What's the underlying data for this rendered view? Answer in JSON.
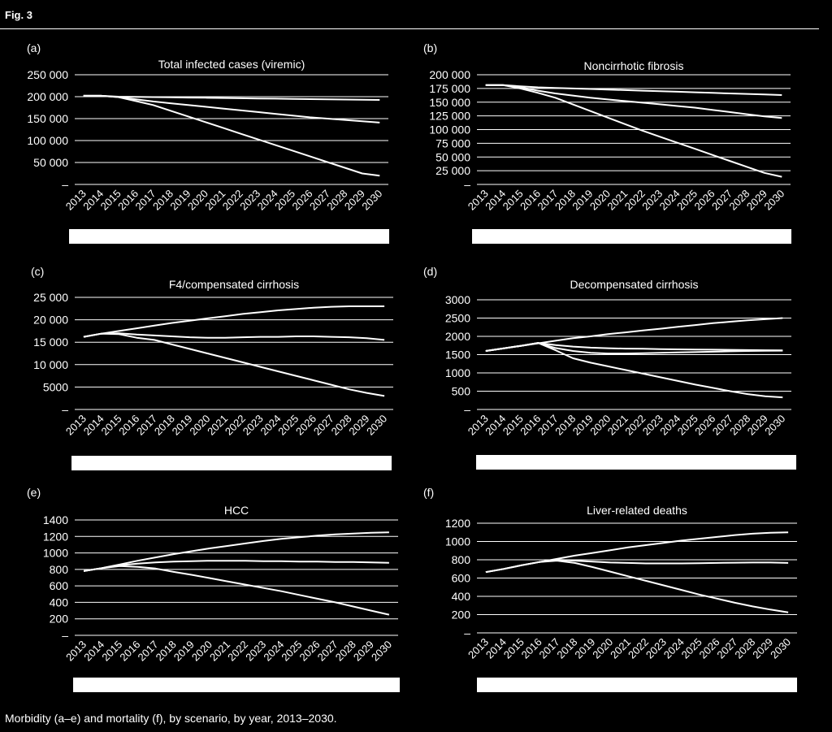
{
  "figure": {
    "label": "Fig. 3",
    "caption": "Morbidity (a–e) and mortality (f), by scenario, by year, 2013–2030."
  },
  "colors": {
    "background": "#000000",
    "foreground": "#ffffff"
  },
  "chart_data": [
    {
      "panel": "(a)",
      "type": "line",
      "title": "Total infected cases (viremic)",
      "x": [
        2013,
        2014,
        2015,
        2016,
        2017,
        2018,
        2019,
        2020,
        2021,
        2022,
        2023,
        2024,
        2025,
        2026,
        2027,
        2028,
        2029,
        2030
      ],
      "ylim": [
        0,
        250000
      ],
      "yticks": [
        "–",
        "50 000",
        "100 000",
        "150 000",
        "200 000",
        "250 000"
      ],
      "grid": true,
      "legend": "bottom (blank)",
      "series": [
        {
          "values": [
            202000,
            202000,
            200000,
            199500,
            199000,
            198500,
            198000,
            197500,
            197000,
            196500,
            196000,
            195500,
            195000,
            194500,
            194000,
            193500,
            193000,
            192500
          ]
        },
        {
          "values": [
            202000,
            202000,
            199000,
            194000,
            189000,
            185000,
            181000,
            177000,
            173000,
            169000,
            165000,
            161000,
            157000,
            153000,
            150000,
            147000,
            144000,
            141000
          ]
        },
        {
          "values": [
            202000,
            202000,
            199000,
            190000,
            181000,
            168000,
            155000,
            142000,
            129000,
            116000,
            103000,
            90000,
            77000,
            64000,
            51000,
            38000,
            25000,
            20000
          ]
        }
      ]
    },
    {
      "panel": "(b)",
      "type": "line",
      "title": "Noncirrhotic fibrosis",
      "x": [
        2013,
        2014,
        2015,
        2016,
        2017,
        2018,
        2019,
        2020,
        2021,
        2022,
        2023,
        2024,
        2025,
        2026,
        2027,
        2028,
        2029,
        2030
      ],
      "ylim": [
        0,
        200000
      ],
      "yticks": [
        "–",
        "25 000",
        "50 000",
        "75 000",
        "100 000",
        "125 000",
        "150 000",
        "175 000",
        "200 000"
      ],
      "grid": true,
      "legend": "bottom (blank)",
      "series": [
        {
          "values": [
            181000,
            181000,
            179000,
            177000,
            176000,
            175000,
            174000,
            173000,
            172000,
            171000,
            170000,
            169000,
            168000,
            167000,
            166000,
            165000,
            164000,
            163000
          ]
        },
        {
          "values": [
            181000,
            181000,
            177000,
            171000,
            166000,
            162000,
            158000,
            155000,
            152000,
            149000,
            146000,
            143000,
            140000,
            136000,
            132000,
            128000,
            124000,
            121000
          ]
        },
        {
          "values": [
            181000,
            181000,
            175000,
            167000,
            158000,
            146000,
            134000,
            122000,
            110000,
            98000,
            87000,
            76000,
            65000,
            54000,
            43000,
            32000,
            21000,
            14000
          ]
        }
      ]
    },
    {
      "panel": "(c)",
      "type": "line",
      "title": "F4/compensated cirrhosis",
      "x": [
        2013,
        2014,
        2015,
        2016,
        2017,
        2018,
        2019,
        2020,
        2021,
        2022,
        2023,
        2024,
        2025,
        2026,
        2027,
        2028,
        2029,
        2030
      ],
      "ylim": [
        0,
        25000
      ],
      "yticks": [
        "–",
        "5000",
        "10 000",
        "15 000",
        "20 000",
        "25 000"
      ],
      "grid": true,
      "legend": "bottom (blank)",
      "series": [
        {
          "values": [
            16200,
            16900,
            17500,
            18100,
            18700,
            19300,
            19800,
            20300,
            20800,
            21300,
            21700,
            22100,
            22400,
            22700,
            22900,
            23000,
            23000,
            23000
          ]
        },
        {
          "values": [
            16200,
            16900,
            17000,
            16700,
            16500,
            16300,
            16100,
            16000,
            16000,
            16100,
            16200,
            16200,
            16300,
            16300,
            16200,
            16100,
            15900,
            15500
          ]
        },
        {
          "values": [
            16200,
            16900,
            16800,
            16000,
            15500,
            14500,
            13500,
            12500,
            11500,
            10500,
            9500,
            8500,
            7500,
            6500,
            5500,
            4500,
            3700,
            3000
          ]
        }
      ]
    },
    {
      "panel": "(d)",
      "type": "line",
      "title": "Decompensated cirrhosis",
      "x": [
        2013,
        2014,
        2015,
        2016,
        2017,
        2018,
        2019,
        2020,
        2021,
        2022,
        2023,
        2024,
        2025,
        2026,
        2027,
        2028,
        2029,
        2030
      ],
      "ylim": [
        0,
        3000
      ],
      "yticks": [
        "–",
        "500",
        "1000",
        "1500",
        "2000",
        "2500",
        "3000"
      ],
      "grid": true,
      "legend": "bottom (blank)",
      "series": [
        {
          "values": [
            1600,
            1670,
            1740,
            1810,
            1880,
            1950,
            2000,
            2060,
            2110,
            2160,
            2210,
            2260,
            2310,
            2360,
            2400,
            2440,
            2470,
            2500
          ]
        },
        {
          "values": [
            1600,
            1670,
            1740,
            1820,
            1760,
            1720,
            1690,
            1675,
            1665,
            1660,
            1650,
            1645,
            1640,
            1635,
            1630,
            1625,
            1620,
            1615
          ]
        },
        {
          "values": [
            1600,
            1670,
            1740,
            1820,
            1680,
            1600,
            1550,
            1530,
            1530,
            1540,
            1550,
            1560,
            1570,
            1580,
            1590,
            1600,
            1605,
            1610
          ]
        },
        {
          "values": [
            1600,
            1670,
            1740,
            1820,
            1620,
            1400,
            1280,
            1180,
            1080,
            980,
            880,
            780,
            680,
            590,
            500,
            420,
            360,
            330
          ]
        }
      ]
    },
    {
      "panel": "(e)",
      "type": "line",
      "title": "HCC",
      "x": [
        2013,
        2014,
        2015,
        2016,
        2017,
        2018,
        2019,
        2020,
        2021,
        2022,
        2023,
        2024,
        2025,
        2026,
        2027,
        2028,
        2029,
        2030
      ],
      "ylim": [
        0,
        1400
      ],
      "yticks": [
        "–",
        "200",
        "400",
        "600",
        "800",
        "1000",
        "1200",
        "1400"
      ],
      "grid": true,
      "legend": "bottom (blank)",
      "series": [
        {
          "values": [
            780,
            815,
            860,
            905,
            945,
            985,
            1020,
            1055,
            1085,
            1115,
            1145,
            1170,
            1190,
            1210,
            1225,
            1235,
            1245,
            1250
          ]
        },
        {
          "values": [
            780,
            815,
            850,
            870,
            885,
            895,
            900,
            905,
            905,
            905,
            900,
            900,
            895,
            895,
            890,
            890,
            885,
            880
          ]
        },
        {
          "values": [
            780,
            815,
            840,
            830,
            810,
            770,
            735,
            695,
            655,
            615,
            575,
            535,
            490,
            445,
            400,
            350,
            300,
            250
          ]
        }
      ]
    },
    {
      "panel": "(f)",
      "type": "line",
      "title": "Liver-related deaths",
      "x": [
        2013,
        2014,
        2015,
        2016,
        2017,
        2018,
        2019,
        2020,
        2021,
        2022,
        2023,
        2024,
        2025,
        2026,
        2027,
        2028,
        2029,
        2030
      ],
      "ylim": [
        0,
        1200
      ],
      "yticks": [
        "–",
        "200",
        "400",
        "600",
        "800",
        "1000",
        "1200"
      ],
      "grid": true,
      "legend": "bottom (blank)",
      "series": [
        {
          "values": [
            665,
            700,
            740,
            775,
            810,
            845,
            875,
            905,
            935,
            960,
            985,
            1010,
            1030,
            1050,
            1070,
            1085,
            1095,
            1100
          ]
        },
        {
          "values": [
            665,
            700,
            740,
            775,
            800,
            790,
            780,
            770,
            765,
            760,
            760,
            760,
            762,
            765,
            768,
            770,
            770,
            765
          ]
        },
        {
          "values": [
            665,
            700,
            740,
            775,
            790,
            765,
            720,
            670,
            620,
            570,
            520,
            470,
            420,
            375,
            330,
            290,
            255,
            225
          ]
        }
      ]
    }
  ]
}
